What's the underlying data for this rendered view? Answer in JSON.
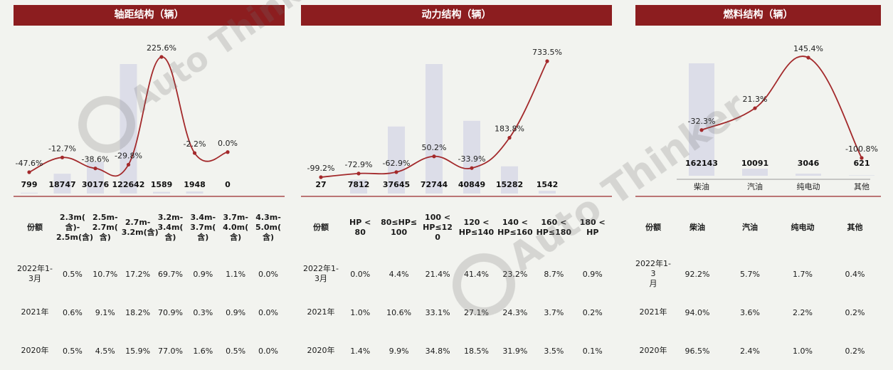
{
  "colors": {
    "header": "#8c1d1f",
    "bar": "#dcdde8",
    "line": "#a3292b",
    "divider": "#9a2a2c"
  },
  "panels": [
    {
      "title": "轴距结构（辆）",
      "chart_data": {
        "type": "bar",
        "categories": [
          "2.3m(含)-2.5m(含)",
          "2.5m-2.7m(含)",
          "2.7m-3.2m(含)",
          "3.2m-3.4m(含)",
          "3.4m-3.7m(含)",
          "3.7m-4.0m(含)",
          "4.3m-5.0m(含)"
        ],
        "values": [
          799,
          18747,
          30176,
          122642,
          1589,
          1948,
          0
        ],
        "series": [
          {
            "type": "bar",
            "values": [
              799,
              18747,
              30176,
              122642,
              1589,
              1948,
              0
            ]
          },
          {
            "type": "line",
            "values": [
              -47.6,
              -12.7,
              -38.6,
              -29.8,
              225.6,
              -2.2,
              0.0
            ],
            "labels": [
              "-47.6%",
              "-12.7%",
              "-38.6%",
              "-29.8%",
              "225.6%",
              "-2.2%",
              "0.0%"
            ]
          }
        ]
      },
      "table": {
        "header_first": "份额",
        "columns": [
          [
            "2.3m(",
            "含)-",
            "2.5m(含)"
          ],
          [
            "2.5m-",
            "2.7m(",
            "含)"
          ],
          [
            "2.7m-",
            "3.2m(含)"
          ],
          [
            "3.2m-",
            "3.4m(",
            "含)"
          ],
          [
            "3.4m-",
            "3.7m(",
            "含)"
          ],
          [
            "3.7m-",
            "4.0m(",
            "含)"
          ],
          [
            "4.3m-",
            "5.0m(",
            "含)"
          ]
        ],
        "rows": [
          {
            "label": [
              "2022年1-",
              "3月"
            ],
            "values": [
              "0.5%",
              "10.7%",
              "17.2%",
              "69.7%",
              "0.9%",
              "1.1%",
              "0.0%"
            ]
          },
          {
            "label": [
              "2021年"
            ],
            "values": [
              "0.6%",
              "9.1%",
              "18.2%",
              "70.9%",
              "0.3%",
              "0.9%",
              "0.0%"
            ]
          },
          {
            "label": [
              "2020年"
            ],
            "values": [
              "0.5%",
              "4.5%",
              "15.9%",
              "77.0%",
              "1.6%",
              "0.5%",
              "0.0%"
            ]
          }
        ]
      }
    },
    {
      "title": "动力结构（辆）",
      "chart_data": {
        "type": "bar",
        "categories": [
          "HP < 80",
          "80≤HP≤100",
          "100 < HP≤120",
          "120 < HP≤140",
          "140 < HP≤160",
          "160 < HP≤180",
          "180 < HP"
        ],
        "values": [
          27,
          7812,
          37645,
          72744,
          40849,
          15282,
          1542
        ],
        "series": [
          {
            "type": "bar",
            "values": [
              27,
              7812,
              37645,
              72744,
              40849,
              15282,
              1542
            ]
          },
          {
            "type": "line",
            "values": [
              -99.2,
              -72.9,
              -62.9,
              50.2,
              -33.9,
              183.8,
              733.5
            ],
            "labels": [
              "-99.2%",
              "-72.9%",
              "-62.9%",
              "50.2%",
              "-33.9%",
              "183.8%",
              "733.5%"
            ]
          }
        ]
      },
      "table": {
        "header_first": "份额",
        "columns": [
          [
            "HP <",
            "80"
          ],
          [
            "80≤HP≤",
            "100"
          ],
          [
            "100 <",
            "HP≤12",
            "0"
          ],
          [
            "120 <",
            "HP≤140"
          ],
          [
            "140 <",
            "HP≤160"
          ],
          [
            "160 <",
            "HP≤180"
          ],
          [
            "180 <",
            "HP"
          ]
        ],
        "rows": [
          {
            "label": [
              "2022年1-",
              "3月"
            ],
            "values": [
              "0.0%",
              "4.4%",
              "21.4%",
              "41.4%",
              "23.2%",
              "8.7%",
              "0.9%"
            ]
          },
          {
            "label": [
              "2021年"
            ],
            "values": [
              "1.0%",
              "10.6%",
              "33.1%",
              "27.1%",
              "24.3%",
              "3.7%",
              "0.2%"
            ]
          },
          {
            "label": [
              "2020年"
            ],
            "values": [
              "1.4%",
              "9.9%",
              "34.8%",
              "18.5%",
              "31.9%",
              "3.5%",
              "0.1%"
            ]
          }
        ]
      }
    },
    {
      "title": "燃料结构（辆）",
      "chart_data": {
        "type": "bar",
        "categories": [
          "柴油",
          "汽油",
          "纯电动",
          "其他"
        ],
        "values": [
          162143,
          10091,
          3046,
          621
        ],
        "series": [
          {
            "type": "bar",
            "values": [
              162143,
              10091,
              3046,
              621
            ]
          },
          {
            "type": "line",
            "values": [
              -32.3,
              21.3,
              145.4,
              -100.8
            ],
            "labels": [
              "-32.3%",
              "21.3%",
              "145.4%",
              "-100.8%"
            ]
          }
        ]
      },
      "table": {
        "header_first": "份额",
        "columns": [
          [
            "柴油"
          ],
          [
            "汽油"
          ],
          [
            "纯电动"
          ],
          [
            "其他"
          ]
        ],
        "rows": [
          {
            "label": [
              "2022年1-3",
              "月"
            ],
            "values": [
              "92.2%",
              "5.7%",
              "1.7%",
              "0.4%"
            ]
          },
          {
            "label": [
              "2021年"
            ],
            "values": [
              "94.0%",
              "3.6%",
              "2.2%",
              "0.2%"
            ]
          },
          {
            "label": [
              "2020年"
            ],
            "values": [
              "96.5%",
              "2.4%",
              "1.0%",
              "0.2%"
            ]
          }
        ]
      }
    }
  ],
  "watermark": {
    "text_main": "Auto Thinker",
    "text_sub": "汽 车 智 平 台"
  }
}
